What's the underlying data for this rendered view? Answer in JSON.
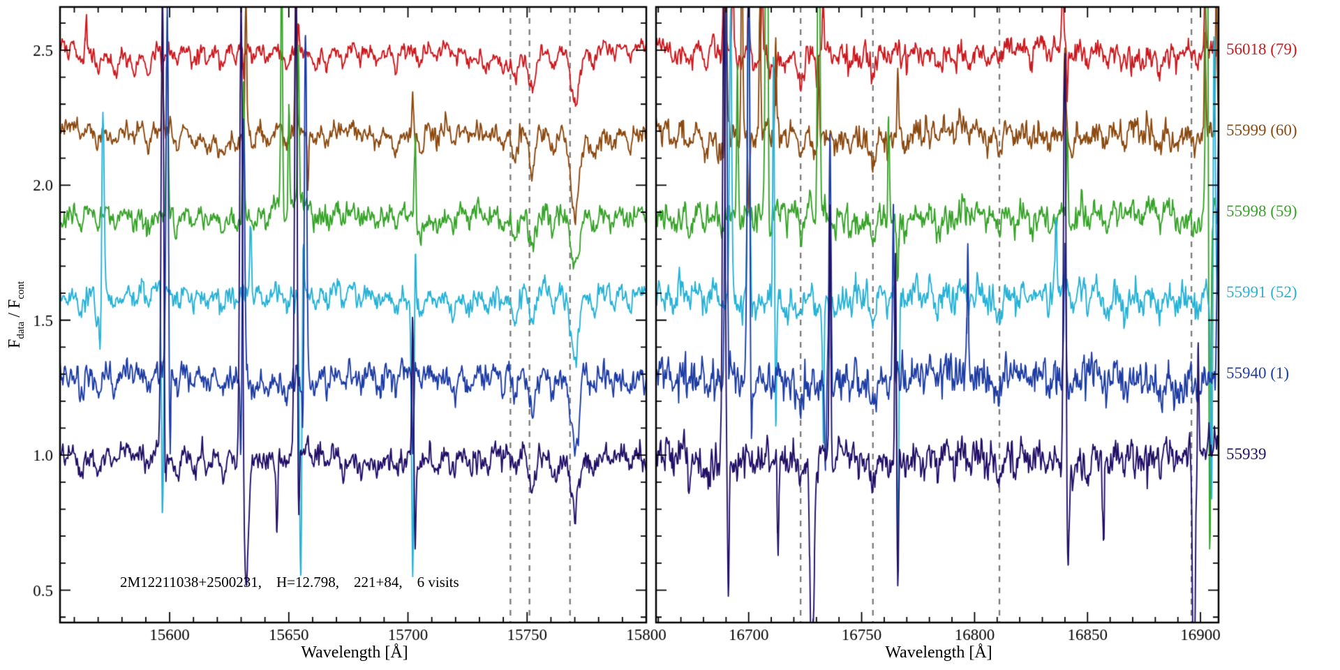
{
  "figure": {
    "annotation": "2M12211038+2500231,    H=12.798,    221+84,    6 visits",
    "ylabel": {
      "f1": "F",
      "sub1": "data",
      "mid": " / F",
      "sub2": "cont"
    }
  },
  "chart_data": {
    "type": "line",
    "title": "",
    "ylabel": "F_data / F_cont",
    "ylim": [
      0.38,
      2.66
    ],
    "yticks": [
      0.5,
      1.0,
      1.5,
      2.0,
      2.5
    ],
    "y_minor_step": 0.1,
    "background": "#ffffff",
    "axis_color": "#000000",
    "dash_color": "#7a7a7a",
    "legend_position": "right-outside",
    "grid": false,
    "panels": [
      {
        "xlabel": "Wavelength [Å]",
        "xlim": [
          15554,
          15800
        ],
        "xticks": [
          15600,
          15650,
          15700,
          15750,
          15800
        ],
        "x_minor_step": 10,
        "dashed_lines": [
          15743,
          15751,
          15768
        ],
        "features": [
          [
            15563,
            0.05,
            1.5
          ],
          [
            15570,
            0.06,
            1.6
          ],
          [
            15577,
            0.05,
            1.5
          ],
          [
            15585,
            0.04,
            1.5
          ],
          [
            15591,
            0.06,
            1.6
          ],
          [
            15603,
            0.05,
            1.5
          ],
          [
            15610,
            0.04,
            1.5
          ],
          [
            15616,
            0.05,
            1.5
          ],
          [
            15622,
            0.06,
            1.8
          ],
          [
            15628,
            0.04,
            1.4
          ],
          [
            15635,
            0.05,
            1.5
          ],
          [
            15641,
            0.04,
            1.4
          ],
          [
            15649,
            0.05,
            1.5
          ],
          [
            15661,
            0.05,
            1.6
          ],
          [
            15666,
            0.06,
            1.6
          ],
          [
            15673,
            0.05,
            1.5
          ],
          [
            15680,
            0.04,
            1.5
          ],
          [
            15687,
            0.05,
            1.6
          ],
          [
            15695,
            0.05,
            1.5
          ],
          [
            15705,
            0.06,
            1.7
          ],
          [
            15712,
            0.04,
            1.5
          ],
          [
            15719,
            0.05,
            1.5
          ],
          [
            15726,
            0.04,
            1.5
          ],
          [
            15733,
            0.05,
            1.6
          ],
          [
            15740,
            0.06,
            1.6
          ],
          [
            15745,
            0.1,
            1.8
          ],
          [
            15752,
            0.13,
            1.9
          ],
          [
            15761,
            0.07,
            1.7
          ],
          [
            15770,
            0.23,
            2.4
          ],
          [
            15778,
            0.06,
            1.6
          ],
          [
            15786,
            0.04,
            1.5
          ],
          [
            15793,
            0.05,
            1.5
          ]
        ]
      },
      {
        "xlabel": "Wavelength [Å]",
        "xlim": [
          16659,
          16908
        ],
        "xticks": [
          16700,
          16750,
          16800,
          16850,
          16900
        ],
        "x_minor_step": 10,
        "dashed_lines": [
          16723,
          16755,
          16811,
          16896
        ],
        "features": [
          [
            16667,
            0.05,
            1.6
          ],
          [
            16674,
            0.05,
            1.6
          ],
          [
            16681,
            0.05,
            1.6
          ],
          [
            16688,
            0.06,
            1.7
          ],
          [
            16696,
            0.05,
            1.6
          ],
          [
            16703,
            0.05,
            1.6
          ],
          [
            16710,
            0.04,
            1.5
          ],
          [
            16717,
            0.05,
            1.6
          ],
          [
            16723,
            0.1,
            1.9
          ],
          [
            16730,
            0.06,
            1.6
          ],
          [
            16738,
            0.05,
            1.6
          ],
          [
            16745,
            0.05,
            1.6
          ],
          [
            16750,
            0.05,
            1.5
          ],
          [
            16755,
            0.11,
            2.0
          ],
          [
            16762,
            0.05,
            1.6
          ],
          [
            16770,
            0.05,
            1.6
          ],
          [
            16777,
            0.04,
            1.5
          ],
          [
            16784,
            0.05,
            1.6
          ],
          [
            16791,
            0.05,
            1.6
          ],
          [
            16798,
            0.04,
            1.5
          ],
          [
            16806,
            0.05,
            1.6
          ],
          [
            16811,
            0.08,
            1.8
          ],
          [
            16818,
            0.04,
            1.5
          ],
          [
            16825,
            0.05,
            1.6
          ],
          [
            16833,
            0.05,
            1.6
          ],
          [
            16843,
            0.05,
            1.6
          ],
          [
            16850,
            0.04,
            1.5
          ],
          [
            16858,
            0.05,
            1.6
          ],
          [
            16866,
            0.05,
            1.6
          ],
          [
            16874,
            0.04,
            1.5
          ],
          [
            16882,
            0.05,
            1.6
          ],
          [
            16890,
            0.05,
            1.6
          ],
          [
            16898,
            0.05,
            1.6
          ]
        ]
      }
    ],
    "series": [
      {
        "label": "56018 (79)",
        "color": "#cb1a1f",
        "baseline": 2.5,
        "offset": 1.5,
        "noise": [
          0.021,
          0.03
        ],
        "seed": 101,
        "spikes": [
          [
            [
              15565,
              0.13
            ],
            [
              15597,
              -0.1
            ],
            [
              15631,
              -0.1
            ],
            [
              15654,
              0.1
            ]
          ],
          [
            [
              16689,
              0.35
            ],
            [
              16693,
              0.3
            ],
            [
              16700,
              0.25
            ],
            [
              16706,
              0.3
            ],
            [
              16712,
              -0.15
            ],
            [
              16733,
              0.18
            ],
            [
              16839,
              0.28
            ],
            [
              16841,
              -0.15
            ],
            [
              16902,
              0.2
            ]
          ]
        ]
      },
      {
        "label": "55999 (60)",
        "color": "#8b4a10",
        "baseline": 2.2,
        "offset": 1.2,
        "noise": [
          0.024,
          0.034
        ],
        "seed": 202,
        "spikes": [
          [
            [
              15597,
              0.2
            ],
            [
              15632,
              0.5
            ],
            [
              15653,
              0.6
            ],
            [
              15658,
              -0.2
            ],
            [
              15702,
              0.15
            ]
          ],
          [
            [
              16690,
              0.8
            ],
            [
              16697,
              0.9
            ],
            [
              16700,
              -0.3
            ],
            [
              16705,
              0.5
            ],
            [
              16712,
              0.3
            ],
            [
              16731,
              0.3
            ],
            [
              16766,
              0.25
            ],
            [
              16840,
              0.3
            ],
            [
              16902,
              0.35
            ],
            [
              16907,
              0.55
            ]
          ]
        ]
      },
      {
        "label": "55998 (59)",
        "color": "#38a32a",
        "baseline": 1.9,
        "offset": 0.9,
        "noise": [
          0.026,
          0.035
        ],
        "seed": 303,
        "spikes": [
          [
            [
              15599,
              0.7
            ],
            [
              15631,
              0.5
            ],
            [
              15647,
              0.95
            ],
            [
              15650,
              0.4
            ],
            [
              15654,
              0.6
            ],
            [
              15703,
              0.3
            ]
          ],
          [
            [
              16695,
              0.55
            ],
            [
              16708,
              1.7,
              0.8
            ],
            [
              16709,
              -0.3
            ],
            [
              16731,
              1.5,
              0.7
            ],
            [
              16762,
              0.4
            ],
            [
              16766,
              -0.25
            ],
            [
              16841,
              0.3
            ],
            [
              16903,
              1.6,
              0.8
            ],
            [
              16904,
              -1.5,
              0.7
            ]
          ]
        ]
      },
      {
        "label": "55991 (52)",
        "color": "#28b2d6",
        "baseline": 1.6,
        "offset": 0.6,
        "noise": [
          0.028,
          0.038
        ],
        "seed": 404,
        "spikes": [
          [
            [
              15572,
              0.75,
              0.7
            ],
            [
              15571,
              -0.22
            ],
            [
              15597,
              -0.85,
              0.6
            ],
            [
              15634,
              0.3
            ],
            [
              15655,
              -1.05,
              0.7
            ],
            [
              15656,
              0.3
            ],
            [
              15702,
              -1.0,
              0.7
            ],
            [
              15703,
              0.25
            ]
          ],
          [
            [
              16692,
              1.05,
              0.7
            ],
            [
              16700,
              1.2,
              0.7
            ],
            [
              16711,
              0.9
            ],
            [
              16712,
              -0.45
            ],
            [
              16733,
              -0.5
            ],
            [
              16766,
              -0.9,
              0.7
            ],
            [
              16836,
              0.25
            ],
            [
              16905,
              -0.85,
              0.7
            ],
            [
              16906,
              1.05,
              0.7
            ]
          ]
        ]
      },
      {
        "label": "55940 (1)",
        "color": "#1e3da4",
        "baseline": 1.3,
        "offset": 0.3,
        "noise": [
          0.034,
          0.05
        ],
        "seed": 505,
        "spikes": [
          [
            [
              15599,
              1.35,
              0.7
            ],
            [
              15600,
              -0.35
            ],
            [
              15630,
              -0.35
            ],
            [
              15631,
              0.95,
              0.7
            ],
            [
              15656,
              -0.3
            ],
            [
              15657,
              1.3,
              0.7
            ],
            [
              15702,
              -0.3
            ]
          ],
          [
            [
              16690,
              1.4,
              0.7
            ],
            [
              16700,
              1.55,
              0.8
            ],
            [
              16701,
              -0.45
            ],
            [
              16734,
              -0.35
            ],
            [
              16736,
              0.9,
              0.6
            ],
            [
              16764,
              0.55
            ],
            [
              16797,
              0.45
            ],
            [
              16840,
              0.45
            ],
            [
              16908,
              0.85,
              0.7
            ]
          ]
        ]
      },
      {
        "label": "55939",
        "color": "#221066",
        "baseline": 1.0,
        "offset": 0.0,
        "noise": [
          0.03,
          0.046
        ],
        "seed": 606,
        "spikes": [
          [
            [
              15597,
              1.7,
              0.8
            ],
            [
              15598,
              -0.28
            ],
            [
              15630,
              1.75,
              0.8
            ],
            [
              15632,
              -0.45,
              1.5
            ],
            [
              15645,
              -0.3
            ],
            [
              15653,
              1.8,
              0.8
            ],
            [
              15654,
              -0.5
            ],
            [
              15702,
              0.55
            ],
            [
              15703,
              -0.32
            ]
          ],
          [
            [
              16689,
              1.75,
              0.8
            ],
            [
              16691,
              -0.5
            ],
            [
              16713,
              -0.38
            ],
            [
              16728,
              -0.8,
              1.2
            ],
            [
              16736,
              0.9
            ],
            [
              16765,
              0.78
            ],
            [
              16766,
              -0.5
            ],
            [
              16840,
              1.7,
              0.8
            ],
            [
              16841,
              -0.55,
              0.9
            ],
            [
              16857,
              -0.3
            ],
            [
              16897,
              -0.92,
              0.8
            ],
            [
              16899,
              0.4
            ]
          ]
        ]
      }
    ]
  }
}
